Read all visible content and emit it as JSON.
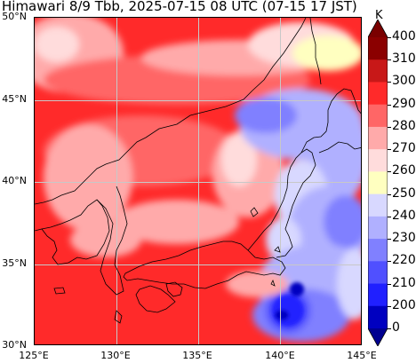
{
  "header": {
    "title": "Himawari 8/9 Tbb, 2025-07-15 08 UTC (07-15 17 JST)"
  },
  "map": {
    "lat_labels": [
      "50°N",
      "45°N",
      "40°N",
      "35°N",
      "30°N"
    ],
    "lon_labels": [
      "125°E",
      "130°E",
      "135°E",
      "140°E",
      "145°E"
    ],
    "extent": {
      "lon_min": 125,
      "lon_max": 145,
      "lat_min": 30,
      "lat_max": 50
    }
  },
  "colorbar": {
    "unit": "K",
    "levels": [
      "400",
      "310",
      "300",
      "290",
      "280",
      "270",
      "260",
      "250",
      "240",
      "230",
      "220",
      "210",
      "200",
      "0"
    ],
    "colors": [
      "#8b0000",
      "#c81818",
      "#ff2a2a",
      "#ff6666",
      "#ffaaaa",
      "#ffdcdc",
      "#ffffc0",
      "#d8d8ff",
      "#b0b0ff",
      "#8080ff",
      "#5050ff",
      "#2020ff",
      "#0000c0"
    ],
    "extend_colors": {
      "top": "#7a0000",
      "bottom": "#000090"
    }
  }
}
